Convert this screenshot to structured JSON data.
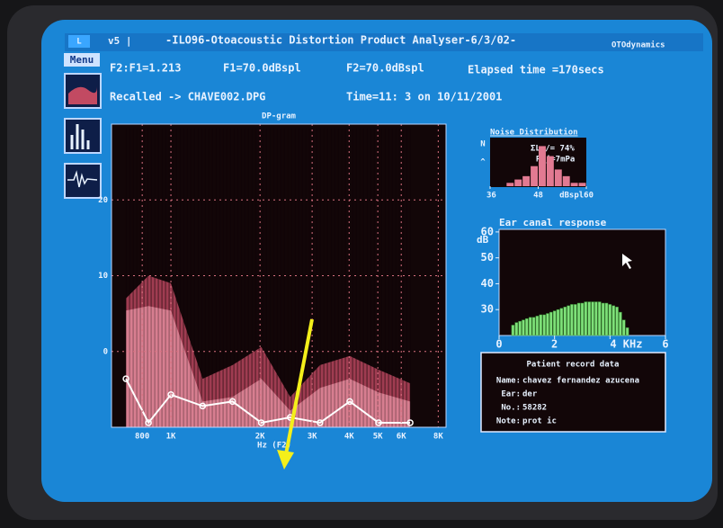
{
  "title_bar": {
    "icon": "L",
    "version": "v5 |",
    "title": "-ILO96-Otoacoustic Distortion Product Analyser-6/3/02-",
    "brand": "OTOdynamics"
  },
  "menu": "Menu",
  "info": {
    "ratio": "F2:F1=1.213",
    "f1": "F1=70.0dBspl",
    "f2": "F2=70.0dBspl",
    "elapsed": "Elapsed time =170secs",
    "recalled": "Recalled -> CHAVE002.DPG",
    "time": "Time=11: 3  on 10/11/2001"
  },
  "dp_gram": {
    "title": "DP-gram",
    "x_label": "Hz (F2)",
    "log_x": true,
    "grid": true,
    "xlim": [
      630,
      8500
    ],
    "xticks": [
      800,
      {
        "value": 1000,
        "label": "1K"
      },
      {
        "value": 2000,
        "label": "2K"
      },
      {
        "value": 3000,
        "label": "3K"
      },
      {
        "value": 4000,
        "label": "4K"
      },
      {
        "value": 5000,
        "label": "5K"
      },
      {
        "value": 6000,
        "label": "6K"
      },
      {
        "value": 8000,
        "label": "8K"
      }
    ],
    "ylim": [
      -10,
      30
    ],
    "yticks": [
      20,
      10,
      0
    ],
    "x": [
      705,
      840,
      1000,
      1280,
      1615,
      2020,
      2530,
      3190,
      4020,
      5030,
      6430
    ],
    "series": [
      {
        "style": "area",
        "color": "#b8475e",
        "values": [
          7,
          10,
          9,
          -3.6,
          -1.8,
          0.6,
          -6,
          -1.8,
          -0.6,
          -2.4,
          -4.2
        ]
      },
      {
        "style": "area",
        "color": "#e0899b",
        "values": [
          5.4,
          6,
          5.4,
          -6.6,
          -6,
          -3.6,
          -7.8,
          -4.8,
          -3.6,
          -5.4,
          -6.6
        ]
      },
      {
        "style": "line",
        "color": "#ffffff",
        "values": [
          -3.6,
          -9.4,
          -5.7,
          -7.2,
          -6.6,
          -9.4,
          -8.7,
          -9.4,
          -6.6,
          -9.4,
          -9.4
        ]
      }
    ]
  },
  "noise_distribution": {
    "title": "Noise Distribution",
    "y_label": "N",
    "arrow": "^",
    "stat_lo": "ΣLo/= 74%",
    "stat_rej": "Rej=7mPa",
    "color": "#e27a92",
    "xlim": [
      36,
      60
    ],
    "xticks": [
      36,
      48,
      {
        "value": 60,
        "label": "dBspl60"
      }
    ],
    "ylim": [
      0,
      14
    ],
    "bins": [
      36,
      38,
      40,
      42,
      44,
      46,
      48,
      50,
      52,
      54,
      56,
      58,
      60
    ],
    "values": [
      0,
      0,
      1,
      2,
      3,
      6,
      12,
      9,
      5,
      3,
      1,
      1
    ]
  },
  "ear_canal": {
    "title": "Ear canal response",
    "y_label": "dB",
    "color": "#7fe07a",
    "xlim": [
      0,
      6
    ],
    "xticks": [
      0,
      2,
      {
        "value": 4,
        "label": "4 KHz"
      },
      6
    ],
    "ylim": [
      20,
      61
    ],
    "yticks": [
      60,
      50,
      40,
      30
    ],
    "x": [
      0.5,
      0.625,
      0.75,
      0.875,
      1,
      1.125,
      1.25,
      1.375,
      1.5,
      1.625,
      1.75,
      1.875,
      2,
      2.125,
      2.25,
      2.375,
      2.5,
      2.625,
      2.75,
      2.875,
      3,
      3.125,
      3.25,
      3.375,
      3.5,
      3.625,
      3.75,
      3.875,
      4,
      4.125,
      4.25,
      4.375,
      4.5,
      4.625
    ],
    "values": [
      24,
      25,
      25.5,
      26,
      26.5,
      27,
      27,
      27.5,
      28,
      28,
      28.5,
      29,
      29.5,
      30,
      30.5,
      31,
      31.5,
      32,
      32,
      32.5,
      32.5,
      33,
      33,
      33,
      33,
      33,
      32.5,
      32.5,
      32,
      31.5,
      31,
      29,
      26,
      23
    ]
  },
  "patient": {
    "title": "Patient record data",
    "rows": [
      [
        "Name:",
        "chavez fernandez azucena"
      ],
      [
        "Ear:",
        "der"
      ],
      [
        "No.:",
        "58282"
      ],
      [
        "Note:",
        "prot ic"
      ]
    ]
  }
}
